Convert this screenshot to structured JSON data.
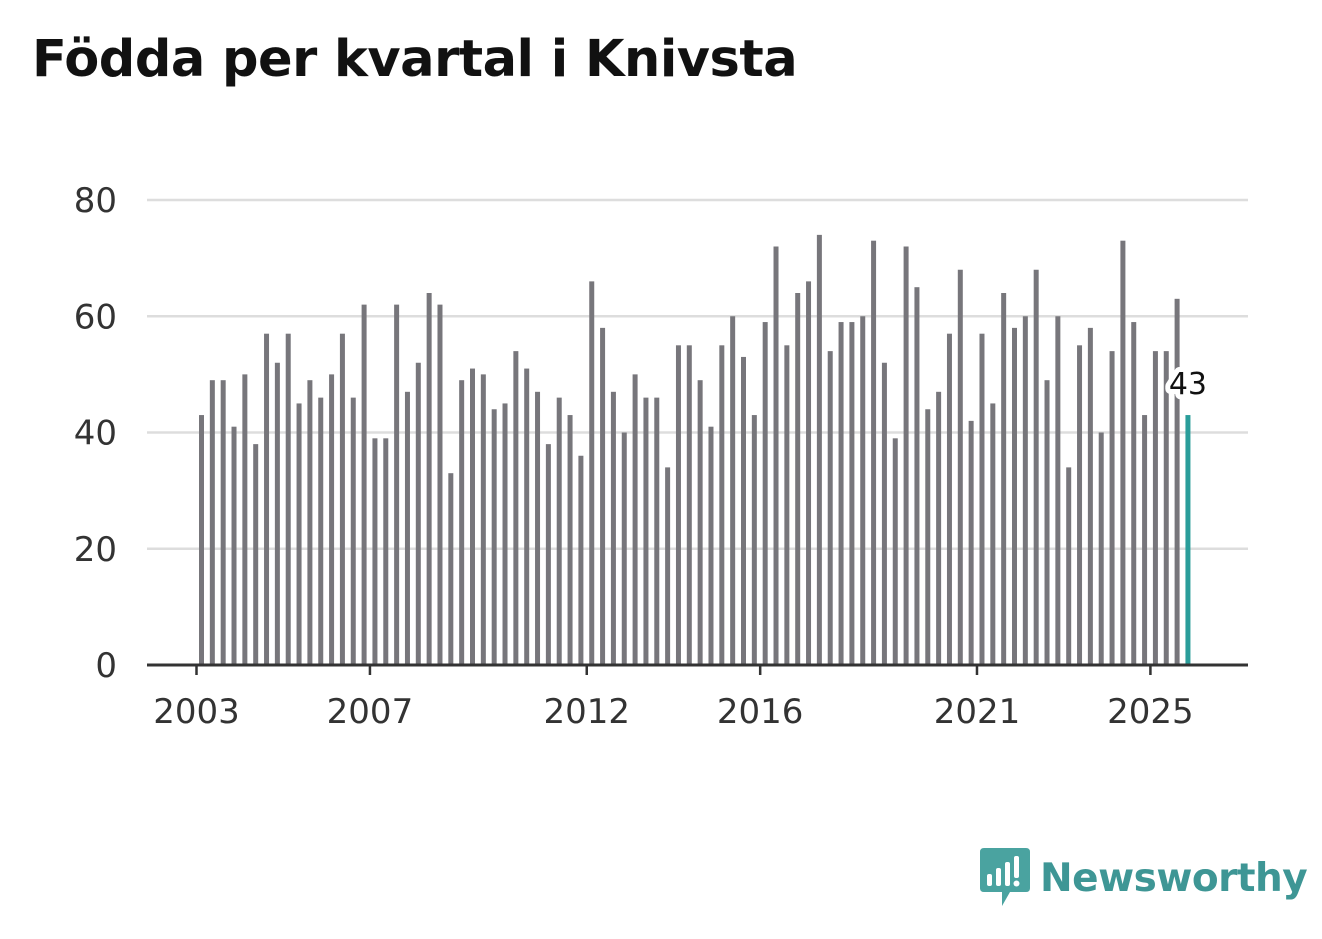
{
  "title": "Födda per kvartal i Knivsta",
  "brand": "Newsworthy",
  "chart_data": {
    "type": "bar",
    "title": "Födda per kvartal i Knivsta",
    "xlabel": "",
    "ylabel": "",
    "ylim": [
      0,
      80
    ],
    "yticks": [
      0,
      20,
      40,
      60,
      80
    ],
    "xticks": [
      "2003",
      "2007",
      "2012",
      "2016",
      "2021",
      "2025"
    ],
    "grid": true,
    "bar_color": "#77767b",
    "highlight_color": "#2a9d9a",
    "start": "2003-Q1",
    "frequency": "quarter",
    "values": [
      43,
      49,
      49,
      41,
      50,
      38,
      57,
      52,
      57,
      45,
      49,
      46,
      50,
      57,
      46,
      62,
      39,
      39,
      62,
      47,
      52,
      64,
      62,
      33,
      49,
      51,
      50,
      44,
      45,
      54,
      51,
      47,
      38,
      46,
      43,
      36,
      66,
      58,
      47,
      40,
      50,
      46,
      46,
      34,
      55,
      55,
      49,
      41,
      55,
      60,
      53,
      43,
      59,
      72,
      55,
      64,
      66,
      74,
      54,
      59,
      59,
      60,
      73,
      52,
      39,
      72,
      65,
      44,
      47,
      57,
      68,
      42,
      57,
      45,
      64,
      58,
      60,
      68,
      49,
      60,
      34,
      55,
      58,
      40,
      54,
      73,
      59,
      43,
      54,
      54,
      63,
      43
    ],
    "last_value_label": "43"
  }
}
